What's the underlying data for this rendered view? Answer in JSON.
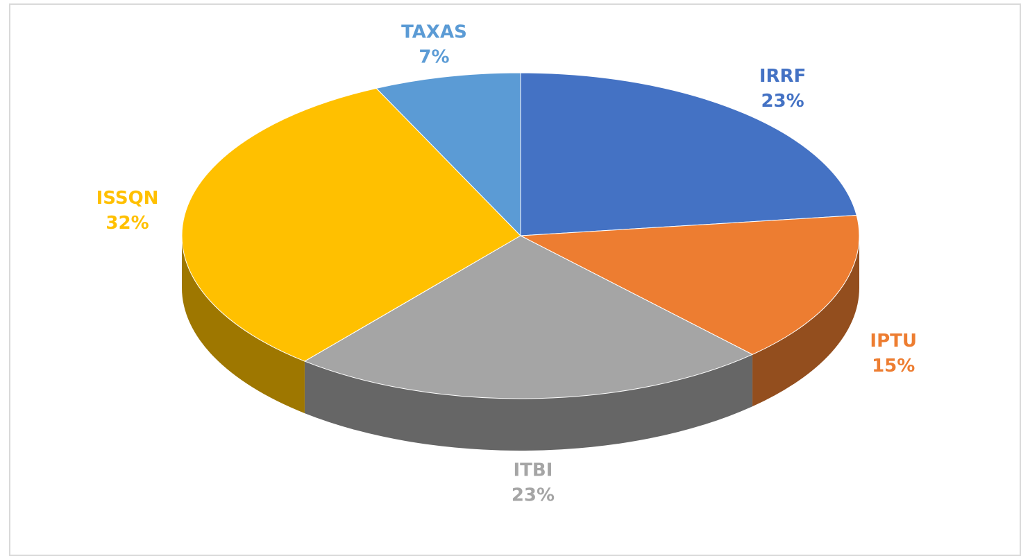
{
  "chart_data": {
    "type": "pie",
    "categories": [
      "IRRF",
      "IPTU",
      "ITBI",
      "ISSQN",
      "TAXAS"
    ],
    "values": [
      23,
      15,
      23,
      32,
      7
    ],
    "value_labels": [
      "23%",
      "15%",
      "23%",
      "32%",
      "7%"
    ],
    "colors": [
      "#4472c4",
      "#ed7d31",
      "#a5a5a5",
      "#ffc000",
      "#5b9bd5"
    ]
  }
}
